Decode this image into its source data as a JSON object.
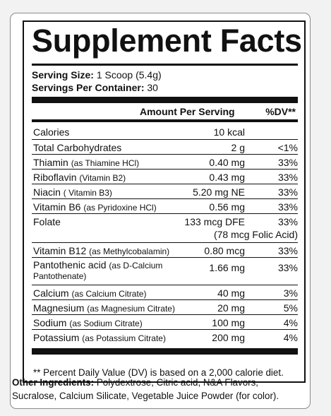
{
  "title": "Supplement Facts",
  "serving_size": {
    "label": "Serving Size:",
    "value": "1 Scoop (5.4g)"
  },
  "servings_per_container": {
    "label": "Servings Per Container:",
    "value": "30"
  },
  "header": {
    "amount": "Amount Per Serving",
    "dv": "%DV**"
  },
  "rows": [
    {
      "name": "Calories",
      "detail": "",
      "amount": "10 kcal",
      "dv": ""
    },
    {
      "name": "Total Carbohydrates",
      "detail": "",
      "amount": "2 g",
      "dv": "<1%"
    },
    {
      "name": "Thiamin",
      "detail": "(as Thiamine HCl)",
      "amount": "0.40 mg",
      "dv": "33%"
    },
    {
      "name": "Riboflavin",
      "detail": "(Vitamin B2)",
      "amount": "0.43 mg",
      "dv": "33%"
    },
    {
      "name": "Niacin",
      "detail": "( Vitamin B3)",
      "amount": "5.20 mg NE",
      "dv": "33%"
    },
    {
      "name": "Vitamin B6",
      "detail": "(as Pyridoxine HCl)",
      "amount": "0.56 mg",
      "dv": "33%"
    },
    {
      "name": "Folate",
      "detail": "",
      "amount": "133 mcg DFE",
      "dv": "33%",
      "sub": "(78 mcg Folic Acid)"
    },
    {
      "name": "Vitamin B12",
      "detail": "(as Methylcobalamin)",
      "amount": "0.80 mcg",
      "dv": "33%"
    },
    {
      "name": "Pantothenic acid",
      "detail": "(as D-Calcium",
      "detail2": "Pantothenate)",
      "amount": "1.66 mg",
      "dv": "33%"
    },
    {
      "name": "Calcium",
      "detail": "(as Calcium Citrate)",
      "amount": "40 mg",
      "dv": "3%"
    },
    {
      "name": "Magnesium",
      "detail": "(as Magnesium Citrate)",
      "amount": "20 mg",
      "dv": "5%"
    },
    {
      "name": "Sodium",
      "detail": "(as Sodium Citrate)",
      "amount": "100 mg",
      "dv": "4%"
    },
    {
      "name": "Potassium",
      "detail": "(as Potassium Citrate)",
      "amount": "200 mg",
      "dv": "4%"
    }
  ],
  "footnote": "** Percent Daily Value (DV) is based on a 2,000 calorie diet.",
  "other_ingredients": {
    "label": "Other Ingredients:",
    "text": "Polydextrose, Citric acid, N&A Flavors, Sucralose, Calcium Silicate, Vegetable Juice Powder (for color)."
  }
}
